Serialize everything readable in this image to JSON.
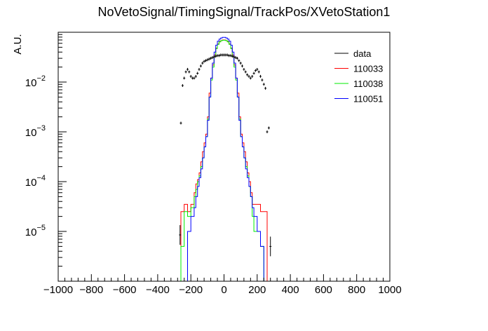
{
  "chart_data": {
    "type": "line",
    "title": "NoVetoSignal/TimingSignal/TrackPos/XVetoStation1",
    "xlabel": "",
    "ylabel": "A.U.",
    "xlim": [
      -1000,
      1000
    ],
    "ylim": [
      1e-06,
      0.1
    ],
    "y_scale": "log",
    "grid": false,
    "legend_position": "top-right",
    "x_ticks": [
      -1000,
      -800,
      -600,
      -400,
      -200,
      0,
      200,
      400,
      600,
      800,
      1000
    ],
    "x_tick_labels": [
      "−1000",
      "−800",
      "−600",
      "−400",
      "−200",
      "0",
      "200",
      "400",
      "600",
      "800",
      "1000"
    ],
    "y_ticks": [
      1e-05,
      0.0001,
      0.001,
      0.01
    ],
    "y_tick_labels": [
      {
        "base": "10",
        "exp": "−5"
      },
      {
        "base": "10",
        "exp": "−4"
      },
      {
        "base": "10",
        "exp": "−3"
      },
      {
        "base": "10",
        "exp": "−2"
      }
    ],
    "series": [
      {
        "name": "data",
        "color": "#000000",
        "style": "points",
        "x": [
          -265,
          -260,
          -250,
          -240,
          -230,
          -220,
          -210,
          -200,
          -190,
          -180,
          -170,
          -160,
          -150,
          -140,
          -130,
          -120,
          -110,
          -100,
          -90,
          -80,
          -70,
          -60,
          -50,
          -40,
          -30,
          -20,
          -10,
          0,
          10,
          20,
          30,
          40,
          50,
          60,
          70,
          80,
          90,
          100,
          110,
          120,
          130,
          140,
          150,
          160,
          170,
          180,
          190,
          200,
          210,
          220,
          230,
          240,
          250,
          260,
          270,
          280
        ],
        "y": [
          8.5e-06,
          0.0015,
          0.0085,
          0.012,
          0.016,
          0.018,
          0.016,
          0.013,
          0.012,
          0.012,
          0.013,
          0.015,
          0.018,
          0.021,
          0.024,
          0.026,
          0.027,
          0.028,
          0.029,
          0.03,
          0.031,
          0.032,
          0.033,
          0.034,
          0.034,
          0.035,
          0.035,
          0.035,
          0.035,
          0.035,
          0.034,
          0.034,
          0.033,
          0.032,
          0.031,
          0.03,
          0.027,
          0.024,
          0.021,
          0.018,
          0.016,
          0.014,
          0.013,
          0.012,
          0.013,
          0.015,
          0.017,
          0.018,
          0.016,
          0.013,
          0.011,
          0.009,
          0.0075,
          0.001,
          0.0012,
          5e-06
        ]
      },
      {
        "name": "110033",
        "color": "#ff0000",
        "style": "step",
        "edges": [
          -260,
          -240,
          -220,
          -200,
          -180,
          -170,
          -160,
          -150,
          -140,
          -130,
          -120,
          -110,
          -100,
          -90,
          -80,
          -70,
          -60,
          -50,
          -40,
          -30,
          -20,
          -10,
          0,
          10,
          20,
          30,
          40,
          50,
          60,
          70,
          80,
          90,
          100,
          110,
          120,
          130,
          140,
          150,
          160,
          170,
          180,
          200,
          220,
          240,
          260
        ],
        "values": [
          2.5e-05,
          3.5e-05,
          2.5e-05,
          3.5e-05,
          6e-05,
          9e-05,
          0.00011,
          0.00015,
          0.00025,
          0.0004,
          0.0006,
          0.0009,
          0.002,
          0.006,
          0.012,
          0.022,
          0.035,
          0.048,
          0.058,
          0.065,
          0.068,
          0.07,
          0.07,
          0.068,
          0.065,
          0.058,
          0.048,
          0.035,
          0.022,
          0.012,
          0.006,
          0.002,
          0.0009,
          0.0006,
          0.0004,
          0.00025,
          0.00015,
          0.0001,
          6e-05,
          3.5e-05,
          3.5e-05,
          3.5e-05,
          2.5e-05,
          2.5e-05
        ]
      },
      {
        "name": "110038",
        "color": "#00ee00",
        "style": "step",
        "edges": [
          -260,
          -240,
          -220,
          -200,
          -180,
          -170,
          -160,
          -150,
          -140,
          -130,
          -120,
          -110,
          -100,
          -90,
          -80,
          -70,
          -60,
          -50,
          -40,
          -30,
          -20,
          -10,
          0,
          10,
          20,
          30,
          40,
          50,
          60,
          70,
          80,
          90,
          100,
          110,
          120,
          130,
          140,
          150,
          160,
          170,
          180,
          200,
          220,
          240
        ],
        "values": [
          5e-06,
          2.5e-05,
          2e-05,
          3e-05,
          5e-05,
          7e-05,
          0.0001,
          0.00013,
          0.0002,
          0.0003,
          0.0005,
          0.0008,
          0.0018,
          0.005,
          0.011,
          0.02,
          0.033,
          0.047,
          0.057,
          0.064,
          0.068,
          0.069,
          0.069,
          0.068,
          0.064,
          0.057,
          0.047,
          0.033,
          0.02,
          0.011,
          0.005,
          0.0018,
          0.0008,
          0.0005,
          0.0003,
          0.0002,
          0.00013,
          8e-05,
          5e-05,
          2e-05,
          1e-05,
          1e-05,
          5e-06
        ]
      },
      {
        "name": "110051",
        "color": "#0000ff",
        "style": "step",
        "edges": [
          -220,
          -200,
          -180,
          -170,
          -160,
          -150,
          -140,
          -130,
          -120,
          -110,
          -100,
          -90,
          -80,
          -70,
          -60,
          -50,
          -40,
          -30,
          -20,
          -10,
          0,
          10,
          20,
          30,
          40,
          50,
          60,
          70,
          80,
          90,
          100,
          110,
          120,
          130,
          140,
          150,
          160,
          170,
          180,
          200,
          220,
          240
        ],
        "values": [
          1e-05,
          2e-05,
          3e-05,
          5e-05,
          8e-05,
          0.00012,
          0.00018,
          0.0003,
          0.0005,
          0.0008,
          0.0017,
          0.005,
          0.012,
          0.024,
          0.04,
          0.055,
          0.066,
          0.073,
          0.077,
          0.079,
          0.079,
          0.077,
          0.073,
          0.066,
          0.055,
          0.04,
          0.024,
          0.012,
          0.005,
          0.0017,
          0.0008,
          0.0005,
          0.0003,
          0.00018,
          0.00012,
          8e-05,
          5e-05,
          3e-05,
          2e-05,
          1e-05,
          5e-06
        ]
      }
    ]
  }
}
